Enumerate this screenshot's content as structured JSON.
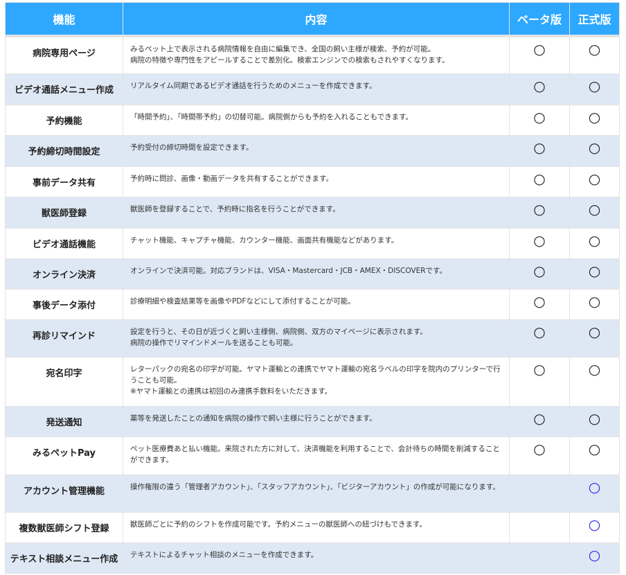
{
  "header": {
    "feature": "機能",
    "content": "内容",
    "beta": "ベータ版",
    "official": "正式版"
  },
  "colors": {
    "header_bg": "#2ea8ff",
    "alt_row_bg": "#dee8f5",
    "new_mark": "#2a2ae8"
  },
  "rows": [
    {
      "feature": "病院専用ページ",
      "lines": [
        "みるペット上で表示される病院情報を自由に編集でき、全国の飼い主様が検索、予約が可能。",
        "病院の特徴や専門性をアピールすることで差別化。検索エンジンでの検索もされやすくなります。"
      ],
      "beta": "○",
      "official": "○"
    },
    {
      "feature": "ビデオ通話メニュー作成",
      "lines": [
        "リアルタイム同期であるビデオ通話を行うためのメニューを作成できます。"
      ],
      "beta": "○",
      "official": "○"
    },
    {
      "feature": "予約機能",
      "lines": [
        "「時間予約」、「時間帯予約」の切替可能。病院側からも予約を入れることもできます。"
      ],
      "beta": "○",
      "official": "○"
    },
    {
      "feature": "予約締切時間設定",
      "lines": [
        "予約受付の締切時間を設定できます。"
      ],
      "beta": "○",
      "official": "○"
    },
    {
      "feature": "事前データ共有",
      "lines": [
        "予約時に問診、画像・動画データを共有することができます。"
      ],
      "beta": "○",
      "official": "○"
    },
    {
      "feature": "獣医師登録",
      "lines": [
        "獣医師を登録することで、予約時に指名を行うことができます。"
      ],
      "beta": "○",
      "official": "○"
    },
    {
      "feature": "ビデオ通話機能",
      "lines": [
        "チャット機能、キャプチャ機能、カウンター機能、画面共有機能などがあります。"
      ],
      "beta": "○",
      "official": "○"
    },
    {
      "feature": "オンライン決済",
      "lines": [
        "オンラインで決済可能。対応ブランドは、VISA・Mastercard・JCB・AMEX・DISCOVERです。"
      ],
      "beta": "○",
      "official": "○"
    },
    {
      "feature": "事後データ添付",
      "lines": [
        "診療明細や検査結果等を画像やPDFなどにして添付することが可能。"
      ],
      "beta": "○",
      "official": "○"
    },
    {
      "feature": "再診リマインド",
      "lines": [
        "設定を行うと、その日が近づくと飼い主様側、病院側、双方のマイページに表示されます。",
        "病院の操作でリマインドメールを送ることも可能。"
      ],
      "beta": "○",
      "official": "○"
    },
    {
      "feature": "宛名印字",
      "lines": [
        "レターパックの宛名の印字が可能。ヤマト運輸との連携でヤマト運輸の宛名ラベルの印字を院内のプリンターで行うことも可能。",
        "※ヤマト運輸との連携は初回のみ連携手数料をいただきます。"
      ],
      "beta": "○",
      "official": "○"
    },
    {
      "feature": "発送通知",
      "lines": [
        "薬等を発送したことの通知を病院の操作で飼い主様に行うことができます。"
      ],
      "beta": "○",
      "official": "○"
    },
    {
      "feature": "みるペットPay",
      "lines": [
        "ペット医療費あと払い機能。来院された方に対して、決済機能を利用することで、会計待ちの時間を削減することができます。"
      ],
      "beta": "○",
      "official": "○"
    },
    {
      "feature": "アカウント管理機能",
      "lines": [
        "操作権限の違う「管理者アカウント」、「スタッフアカウント」、「ビジターアカウント」の作成が可能になります。"
      ],
      "beta": "",
      "official": "○"
    },
    {
      "feature": "複数獣医師シフト登録",
      "lines": [
        "獣医師ごとに予約のシフトを作成可能です。予約メニューの獣医師への紐づけもできます。"
      ],
      "beta": "",
      "official": "○"
    },
    {
      "feature": "テキスト相談メニュー作成",
      "lines": [
        "テキストによるチャット相談のメニューを作成できます。"
      ],
      "beta": "",
      "official": "○"
    }
  ]
}
